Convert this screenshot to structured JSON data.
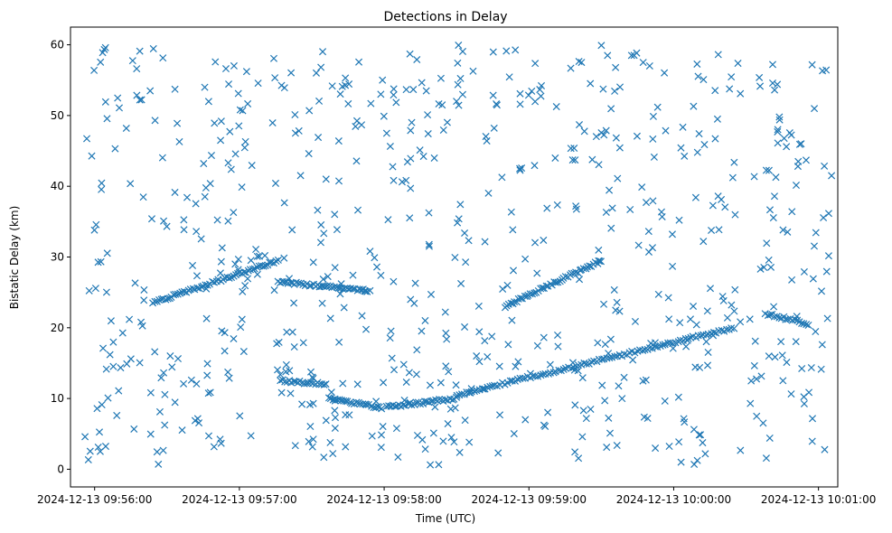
{
  "chart_data": {
    "type": "scatter",
    "title": "Detections in Delay",
    "xlabel": "Time (UTC)",
    "ylabel": "Bistatic Delay (km)",
    "marker": "x",
    "color": "#1f77b4",
    "grid": false,
    "xlim_seconds": [
      -10,
      308
    ],
    "ylim": [
      -2.5,
      62.5
    ],
    "x_ticks": [
      {
        "seconds": 0,
        "label": "2024-12-13 09:56:00"
      },
      {
        "seconds": 60,
        "label": "2024-12-13 09:57:00"
      },
      {
        "seconds": 120,
        "label": "2024-12-13 09:58:00"
      },
      {
        "seconds": 180,
        "label": "2024-12-13 09:59:00"
      },
      {
        "seconds": 240,
        "label": "2024-12-13 10:00:00"
      },
      {
        "seconds": 300,
        "label": "2024-12-13 10:01:00"
      }
    ],
    "y_ticks": [
      0,
      10,
      20,
      30,
      40,
      50,
      60
    ],
    "x_reference": "seconds after 2024-12-13 09:56:00 UTC",
    "tracks": [
      {
        "name": "track-rising-a",
        "x_range": [
          24,
          76
        ],
        "y_range": [
          23.5,
          29.5
        ],
        "points": 60
      },
      {
        "name": "track-flat-a",
        "x_range": [
          76,
          114
        ],
        "y_range": [
          26.5,
          25.2
        ],
        "points": 45
      },
      {
        "name": "track-low-a",
        "x_range": [
          77,
          96
        ],
        "y_range": [
          12.5,
          12.0
        ],
        "points": 22
      },
      {
        "name": "track-descending",
        "x_range": [
          97,
          119
        ],
        "y_range": [
          10.0,
          8.7
        ],
        "points": 26
      },
      {
        "name": "track-low-b",
        "x_range": [
          121,
          150
        ],
        "y_range": [
          8.8,
          10.0
        ],
        "points": 34
      },
      {
        "name": "track-rising-long",
        "x_range": [
          150,
          265
        ],
        "y_range": [
          10.5,
          20.0
        ],
        "points": 110
      },
      {
        "name": "track-rising-b",
        "x_range": [
          170,
          210
        ],
        "y_range": [
          23.0,
          29.5
        ],
        "points": 50
      },
      {
        "name": "track-tail",
        "x_range": [
          278,
          296
        ],
        "y_range": [
          22.0,
          20.5
        ],
        "points": 20
      }
    ],
    "noise": {
      "description": "uniformly scattered false detections",
      "x_range": [
        -6,
        306
      ],
      "y_range": [
        0.5,
        60
      ],
      "points": 700
    }
  }
}
